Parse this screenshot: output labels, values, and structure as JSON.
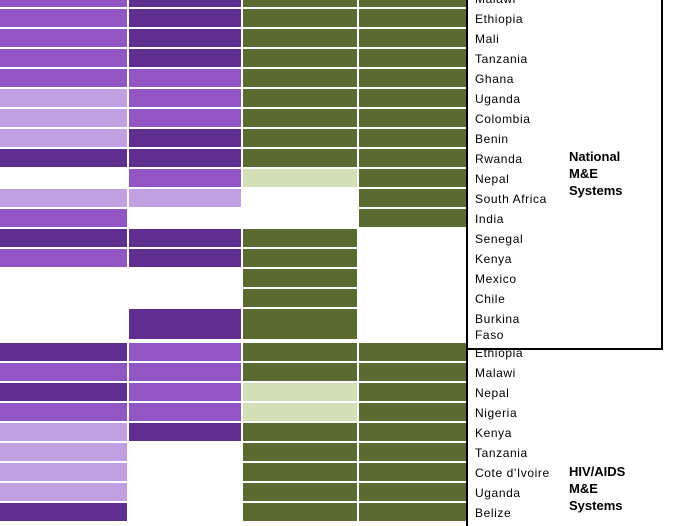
{
  "chart_data": {
    "type": "heatmap",
    "columns": 4,
    "colors": {
      "purple_light": "#c29fe0",
      "purple_mid": "#9156c4",
      "purple_dark": "#5e2d8e",
      "green_light": "#d3dfb6",
      "green_dark": "#5a6b32",
      "empty": "#ffffff"
    },
    "sections": [
      {
        "label": "National\nM&E\nSystems",
        "rows": [
          {
            "country": "Malawi",
            "cells": [
              "purple_mid",
              "purple_dark",
              "green_dark",
              "green_dark"
            ]
          },
          {
            "country": "Ethiopia",
            "cells": [
              "purple_mid",
              "purple_dark",
              "green_dark",
              "green_dark"
            ]
          },
          {
            "country": "Mali",
            "cells": [
              "purple_mid",
              "purple_dark",
              "green_dark",
              "green_dark"
            ]
          },
          {
            "country": "Tanzania",
            "cells": [
              "purple_mid",
              "purple_dark",
              "green_dark",
              "green_dark"
            ]
          },
          {
            "country": "Ghana",
            "cells": [
              "purple_mid",
              "purple_mid",
              "green_dark",
              "green_dark"
            ]
          },
          {
            "country": "Uganda",
            "cells": [
              "purple_light",
              "purple_mid",
              "green_dark",
              "green_dark"
            ]
          },
          {
            "country": "Colombia",
            "cells": [
              "purple_light",
              "purple_mid",
              "green_dark",
              "green_dark"
            ]
          },
          {
            "country": "Benin",
            "cells": [
              "purple_light",
              "purple_dark",
              "green_dark",
              "green_dark"
            ]
          },
          {
            "country": "Rwanda",
            "cells": [
              "purple_dark",
              "purple_dark",
              "green_dark",
              "green_dark"
            ]
          },
          {
            "country": "Nepal",
            "cells": [
              "empty",
              "purple_mid",
              "green_light",
              "green_dark"
            ]
          },
          {
            "country": "South Africa",
            "cells": [
              "purple_light",
              "purple_light",
              "empty",
              "green_dark"
            ]
          },
          {
            "country": "India",
            "cells": [
              "purple_mid",
              "empty",
              "empty",
              "green_dark"
            ]
          },
          {
            "country": "Senegal",
            "cells": [
              "purple_dark",
              "purple_dark",
              "green_dark",
              "empty"
            ]
          },
          {
            "country": "Kenya",
            "cells": [
              "purple_mid",
              "purple_dark",
              "green_dark",
              "empty"
            ]
          },
          {
            "country": "Mexico",
            "cells": [
              "empty",
              "empty",
              "green_dark",
              "empty"
            ]
          },
          {
            "country": "Chile",
            "cells": [
              "empty",
              "empty",
              "green_dark",
              "empty"
            ]
          },
          {
            "country": "Burkina\nFaso",
            "cells": [
              "empty",
              "purple_dark",
              "green_dark",
              "empty"
            ]
          }
        ]
      },
      {
        "label": "HIV/AIDS\nM&E\nSystems",
        "rows": [
          {
            "country": "Ethiopia",
            "cells": [
              "purple_dark",
              "purple_mid",
              "green_dark",
              "green_dark"
            ]
          },
          {
            "country": "Malawi",
            "cells": [
              "purple_mid",
              "purple_mid",
              "green_dark",
              "green_dark"
            ]
          },
          {
            "country": "Nepal",
            "cells": [
              "purple_dark",
              "purple_mid",
              "green_light",
              "green_dark"
            ]
          },
          {
            "country": "Nigeria",
            "cells": [
              "purple_mid",
              "purple_mid",
              "green_light",
              "green_dark"
            ]
          },
          {
            "country": "Kenya",
            "cells": [
              "purple_light",
              "purple_dark",
              "green_dark",
              "green_dark"
            ]
          },
          {
            "country": "Tanzania",
            "cells": [
              "purple_light",
              "empty",
              "green_dark",
              "green_dark"
            ]
          },
          {
            "country": "Cote d'Ivoire",
            "cells": [
              "purple_light",
              "empty",
              "green_dark",
              "green_dark"
            ]
          },
          {
            "country": "Uganda",
            "cells": [
              "purple_light",
              "empty",
              "green_dark",
              "green_dark"
            ]
          },
          {
            "country": "Belize",
            "cells": [
              "purple_dark",
              "empty",
              "green_dark",
              "green_dark"
            ]
          }
        ]
      }
    ]
  }
}
